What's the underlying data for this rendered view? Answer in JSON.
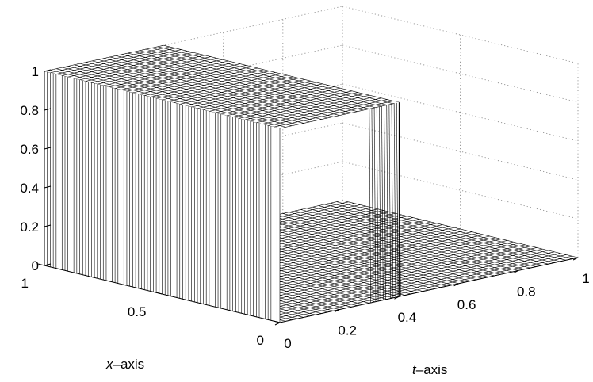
{
  "chart_data": {
    "type": "surface",
    "title": "",
    "xlabel": {
      "var": "x",
      "suffix": "–axis"
    },
    "tlabel": {
      "var": "t",
      "suffix": "–axis"
    },
    "zlabel": "",
    "xlim": [
      0,
      1
    ],
    "tlim": [
      0,
      1
    ],
    "zlim": [
      0,
      1
    ],
    "grid": true,
    "z_ticks": [
      "0",
      "0.2",
      "0.4",
      "0.6",
      "0.8",
      "1"
    ],
    "x_ticks": [
      "0",
      "0.5",
      "1"
    ],
    "t_ticks": [
      "0",
      "0.2",
      "0.4",
      "0.6",
      "0.8",
      "1"
    ],
    "surface": {
      "description_of_values": "z = 1 on the plateau, 0 elsewhere",
      "plateau": {
        "x_range": [
          0,
          1
        ],
        "t_range": [
          0,
          0.4
        ],
        "z": 1
      },
      "base": {
        "x_range": [
          0,
          1
        ],
        "t_range": [
          0,
          1
        ],
        "z": 0
      },
      "mesh_count_x": 40,
      "mesh_count_t": 50
    },
    "colors": {
      "line": "#000000",
      "fill": "#ffffff",
      "grid": "#9a9a9a"
    }
  }
}
